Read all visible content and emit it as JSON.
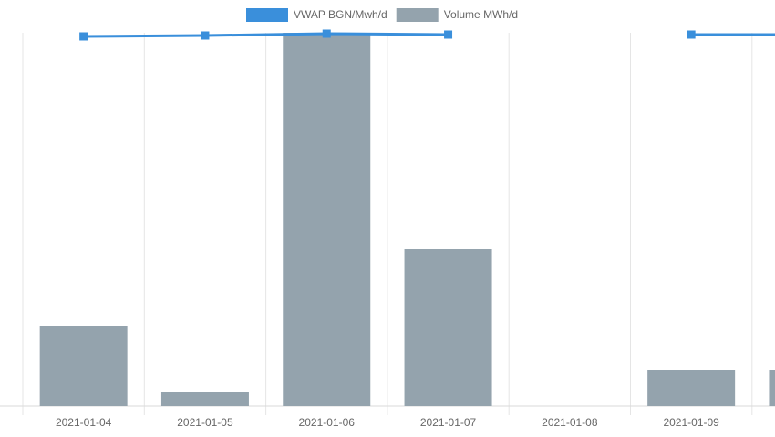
{
  "chart_data": {
    "type": "combo",
    "categories": [
      "2021-01-04",
      "2021-01-05",
      "2021-01-06",
      "2021-01-07",
      "2021-01-08",
      "2021-01-09",
      null
    ],
    "series": [
      {
        "name": "VWAP BGN/Mwh/d",
        "type": "line",
        "axis": "y2",
        "color": "#3a8fdb",
        "values": [
          406,
          407,
          409,
          408,
          null,
          408,
          408
        ]
      },
      {
        "name": "Volume MWh/d",
        "type": "bar",
        "color": "#94a3ad",
        "values": [
          88,
          15,
          410,
          173,
          0,
          40,
          40
        ]
      }
    ],
    "ylim": [
      0,
      410
    ],
    "y2lim": [
      0,
      410
    ],
    "grid": true
  }
}
